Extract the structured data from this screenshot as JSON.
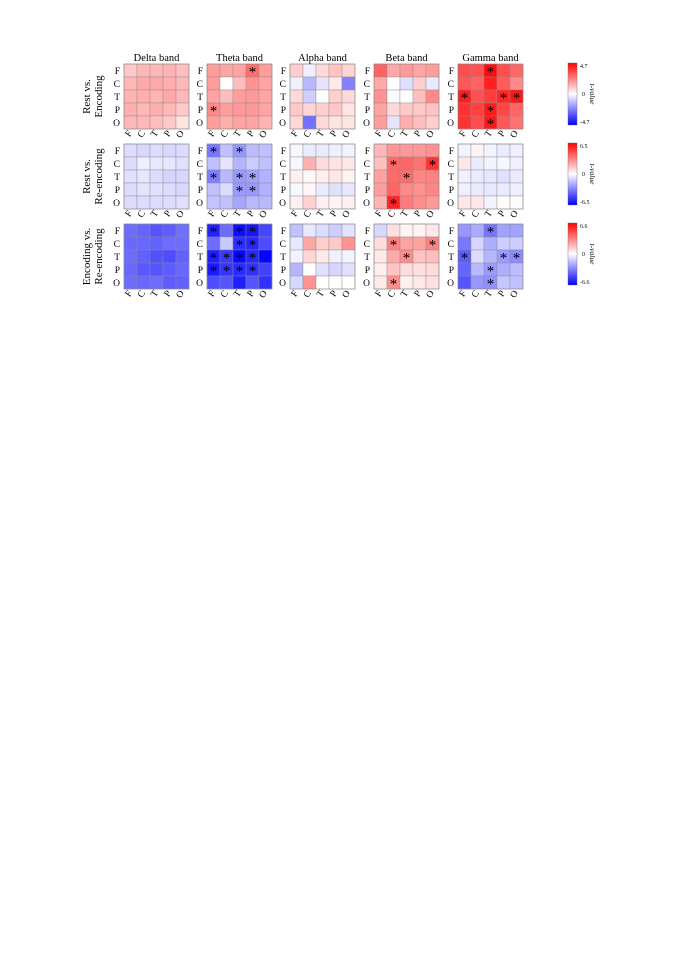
{
  "chart_data": {
    "type": "heatmap",
    "bands": [
      "Delta band",
      "Theta band",
      "Alpha band",
      "Beta band",
      "Gamma band"
    ],
    "regions": [
      "F",
      "C",
      "T",
      "P",
      "O"
    ],
    "colorbar_label": "t-value",
    "colorbar_mid": "0",
    "star": "*",
    "colors": {
      "negative": "#0000ff",
      "neutral": "#ffffff",
      "positive": "#ff0000",
      "grid": "#8a8a8a"
    },
    "rows": [
      {
        "label_lines": [
          "Rest vs.",
          "Encoding"
        ],
        "vmin": -4.7,
        "vmax": 4.7,
        "colorbar_max_label": "4.7",
        "colorbar_min_label": "-4.7",
        "matrices": [
          {
            "band": "Delta band",
            "values": [
              [
                1.0,
                1.3,
                1.3,
                1.4,
                1.2
              ],
              [
                1.3,
                1.6,
                1.6,
                1.5,
                1.3
              ],
              [
                1.4,
                1.5,
                1.4,
                1.6,
                1.3
              ],
              [
                1.5,
                1.3,
                1.5,
                1.3,
                1.0
              ],
              [
                1.3,
                1.3,
                1.2,
                1.0,
                0.5
              ]
            ],
            "sig": []
          },
          {
            "band": "Theta band",
            "values": [
              [
                1.8,
                1.7,
                1.7,
                2.7,
                1.8
              ],
              [
                1.8,
                0.0,
                1.2,
                2.0,
                1.7
              ],
              [
                1.7,
                1.2,
                1.8,
                1.9,
                1.7
              ],
              [
                2.2,
                1.8,
                1.9,
                1.9,
                1.7
              ],
              [
                1.8,
                1.5,
                1.7,
                1.7,
                1.4
              ]
            ],
            "sig": [
              [
                0,
                3
              ],
              [
                3,
                0
              ]
            ]
          },
          {
            "band": "Alpha band",
            "values": [
              [
                0.9,
                -0.3,
                0.7,
                1.1,
                0.8
              ],
              [
                -0.3,
                -1.3,
                -0.5,
                0.4,
                -2.3
              ],
              [
                0.7,
                -0.9,
                0.0,
                0.9,
                0.7
              ],
              [
                1.0,
                0.8,
                0.9,
                1.0,
                0.5
              ],
              [
                0.7,
                -2.6,
                0.7,
                0.5,
                0.5
              ]
            ],
            "sig": []
          },
          {
            "band": "Beta band",
            "values": [
              [
                2.9,
                1.6,
                1.9,
                1.7,
                1.8
              ],
              [
                1.6,
                0.0,
                -0.6,
                0.9,
                -0.4
              ],
              [
                2.0,
                -0.1,
                0.0,
                1.2,
                2.2
              ],
              [
                1.7,
                0.7,
                1.0,
                1.0,
                1.1
              ],
              [
                1.8,
                -0.5,
                1.5,
                1.2,
                0.9
              ]
            ],
            "sig": []
          },
          {
            "band": "Gamma band",
            "values": [
              [
                3.3,
                3.2,
                4.5,
                3.3,
                2.8
              ],
              [
                3.1,
                2.9,
                4.1,
                3.0,
                2.2
              ],
              [
                4.2,
                3.2,
                3.6,
                4.0,
                4.3
              ],
              [
                3.8,
                3.5,
                4.2,
                3.4,
                2.8
              ],
              [
                3.8,
                3.3,
                4.3,
                3.1,
                2.6
              ]
            ],
            "sig": [
              [
                0,
                2
              ],
              [
                2,
                0
              ],
              [
                2,
                3
              ],
              [
                2,
                4
              ],
              [
                3,
                2
              ],
              [
                4,
                2
              ]
            ]
          }
        ]
      },
      {
        "label_lines": [
          "Rest vs.",
          "Re-encoding"
        ],
        "vmin": -6.5,
        "vmax": 6.5,
        "colorbar_max_label": "6.5",
        "colorbar_min_label": "-6.5",
        "matrices": [
          {
            "band": "Delta band",
            "values": [
              [
                -0.9,
                -1.0,
                -0.9,
                -1.0,
                -0.9
              ],
              [
                -0.9,
                -0.4,
                -0.6,
                -0.6,
                -0.8
              ],
              [
                -0.8,
                -0.6,
                -0.9,
                -1.1,
                -1.0
              ],
              [
                -0.9,
                -0.7,
                -0.8,
                -0.9,
                -1.0
              ],
              [
                -0.9,
                -0.9,
                -0.9,
                -0.9,
                -0.8
              ]
            ],
            "sig": []
          },
          {
            "band": "Theta band",
            "values": [
              [
                -3.5,
                -1.6,
                -2.7,
                -1.7,
                -1.6
              ],
              [
                -1.6,
                -0.7,
                -1.9,
                -1.3,
                -1.6
              ],
              [
                -3.3,
                -1.8,
                -2.6,
                -2.4,
                -2.0
              ],
              [
                -1.6,
                -0.9,
                -2.6,
                -2.6,
                -2.0
              ],
              [
                -1.5,
                -1.6,
                -2.3,
                -1.8,
                -1.8
              ]
            ],
            "sig": [
              [
                0,
                0
              ],
              [
                0,
                2
              ],
              [
                2,
                0
              ],
              [
                2,
                2
              ],
              [
                2,
                3
              ],
              [
                3,
                2
              ],
              [
                3,
                3
              ]
            ]
          },
          {
            "band": "Alpha band",
            "values": [
              [
                -0.2,
                -0.5,
                -0.5,
                -0.4,
                -0.3
              ],
              [
                -0.2,
                2.0,
                0.9,
                0.7,
                0.6
              ],
              [
                0.4,
                0.2,
                0.4,
                0.6,
                0.3
              ],
              [
                -0.2,
                0.2,
                -0.5,
                -0.8,
                -0.6
              ],
              [
                0.4,
                1.2,
                0.4,
                0.3,
                0.4
              ]
            ],
            "sig": []
          },
          {
            "band": "Beta band",
            "values": [
              [
                1.8,
                2.7,
                2.6,
                2.6,
                2.8
              ],
              [
                1.6,
                3.8,
                3.9,
                3.6,
                5.2
              ],
              [
                2.4,
                3.8,
                3.8,
                3.1,
                3.2
              ],
              [
                2.5,
                3.9,
                3.0,
                2.8,
                3.1
              ],
              [
                1.9,
                5.6,
                3.4,
                2.9,
                2.6
              ]
            ],
            "sig": [
              [
                1,
                1
              ],
              [
                1,
                4
              ],
              [
                2,
                2
              ],
              [
                4,
                1
              ]
            ]
          },
          {
            "band": "Gamma band",
            "values": [
              [
                -0.3,
                0.3,
                -0.3,
                -0.5,
                -0.4
              ],
              [
                0.6,
                -0.5,
                -0.3,
                -0.2,
                -0.4
              ],
              [
                -0.4,
                -0.5,
                -0.6,
                -0.8,
                -0.5
              ],
              [
                -0.4,
                -0.5,
                -0.6,
                -0.5,
                -0.4
              ],
              [
                0.6,
                0.6,
                -0.3,
                0.1,
                0.1
              ]
            ],
            "sig": []
          }
        ]
      },
      {
        "label_lines": [
          "Encoding vs.",
          "Re-encoding"
        ],
        "vmin": -6.6,
        "vmax": 6.6,
        "colorbar_max_label": "6.6",
        "colorbar_min_label": "-6.6",
        "matrices": [
          {
            "band": "Delta band",
            "values": [
              [
                -3.8,
                -4.0,
                -4.4,
                -4.2,
                -3.7
              ],
              [
                -3.9,
                -3.9,
                -4.1,
                -3.8,
                -3.8
              ],
              [
                -3.8,
                -4.1,
                -4.5,
                -4.6,
                -4.1
              ],
              [
                -3.9,
                -4.3,
                -4.4,
                -4.2,
                -3.9
              ],
              [
                -3.8,
                -3.9,
                -3.8,
                -4.2,
                -4.1
              ]
            ],
            "sig": []
          },
          {
            "band": "Theta band",
            "values": [
              [
                -5.7,
                -3.8,
                -6.2,
                -6.0,
                -4.8
              ],
              [
                -3.8,
                -1.4,
                -5.4,
                -5.6,
                -4.6
              ],
              [
                -5.8,
                -5.1,
                -6.4,
                -5.6,
                -6.5
              ],
              [
                -5.9,
                -5.2,
                -5.5,
                -5.3,
                -4.9
              ],
              [
                -4.6,
                -4.4,
                -5.8,
                -4.4,
                -5.3
              ]
            ],
            "sig": [
              [
                0,
                0
              ],
              [
                0,
                2
              ],
              [
                0,
                3
              ],
              [
                1,
                2
              ],
              [
                1,
                3
              ],
              [
                2,
                0
              ],
              [
                2,
                1
              ],
              [
                2,
                2
              ],
              [
                2,
                3
              ],
              [
                3,
                0
              ],
              [
                3,
                1
              ],
              [
                3,
                2
              ],
              [
                3,
                3
              ]
            ]
          },
          {
            "band": "Alpha band",
            "values": [
              [
                -1.6,
                -0.6,
                -0.9,
                -1.3,
                -0.7
              ],
              [
                -0.6,
                2.3,
                1.3,
                1.4,
                2.8
              ],
              [
                -0.3,
                1.1,
                0.6,
                -0.4,
                -0.3
              ],
              [
                -1.9,
                0.0,
                -0.8,
                -1.1,
                -0.8
              ],
              [
                -1.0,
                2.8,
                0.0,
                0.0,
                0.0
              ]
            ],
            "sig": []
          },
          {
            "band": "Beta band",
            "values": [
              [
                -1.0,
                0.8,
                0.3,
                0.3,
                0.6
              ],
              [
                0.9,
                3.2,
                2.4,
                2.4,
                3.2
              ],
              [
                0.6,
                2.2,
                3.0,
                1.6,
                1.7
              ],
              [
                0.4,
                1.5,
                0.9,
                0.8,
                0.9
              ],
              [
                0.6,
                2.9,
                0.4,
                0.6,
                0.8
              ]
            ],
            "sig": [
              [
                1,
                1
              ],
              [
                1,
                4
              ],
              [
                2,
                2
              ],
              [
                4,
                1
              ]
            ]
          },
          {
            "band": "Gamma band",
            "values": [
              [
                -2.7,
                -2.2,
                -3.6,
                -2.4,
                -2.4
              ],
              [
                -3.5,
                -1.1,
                -2.1,
                -1.3,
                -1.3
              ],
              [
                -4.2,
                -0.9,
                -1.9,
                -2.6,
                -3.0
              ],
              [
                -4.0,
                -1.8,
                -2.6,
                -2.1,
                -1.7
              ],
              [
                -4.4,
                -2.7,
                -2.9,
                -1.5,
                -1.6
              ]
            ],
            "sig": [
              [
                0,
                2
              ],
              [
                2,
                0
              ],
              [
                2,
                3
              ],
              [
                2,
                4
              ],
              [
                3,
                2
              ],
              [
                4,
                2
              ]
            ]
          }
        ]
      }
    ]
  }
}
